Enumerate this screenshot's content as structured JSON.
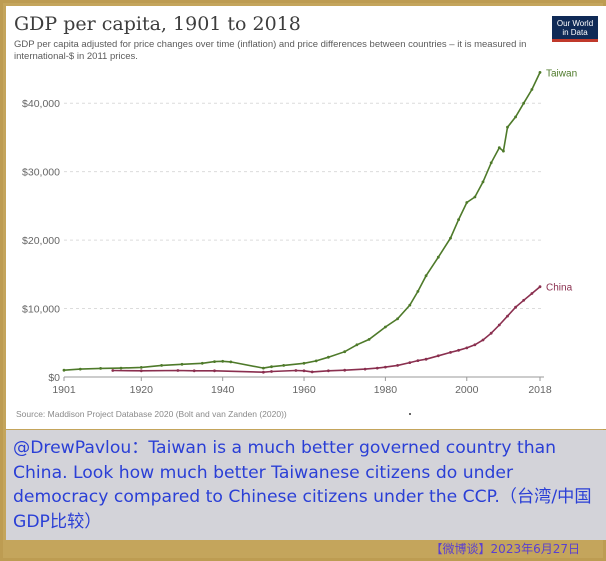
{
  "chart_data": {
    "type": "line",
    "title": "GDP per capita, 1901 to 2018",
    "subtitle": "GDP per capita adjusted for price changes over time (inflation) and price differences between countries – it is measured in international-$ in 2011 prices.",
    "source": "Source: Maddison Project Database 2020 (Bolt and van Zanden (2020))",
    "logo": [
      "Our World",
      "in Data"
    ],
    "xlim": [
      1901,
      2018
    ],
    "ylim": [
      0,
      45000
    ],
    "x_ticks": [
      1901,
      1920,
      1940,
      1960,
      1980,
      2000,
      2018
    ],
    "y_ticks": [
      {
        "value": 0,
        "label": "$0"
      },
      {
        "value": 10000,
        "label": "$10,000"
      },
      {
        "value": 20000,
        "label": "$20,000"
      },
      {
        "value": 30000,
        "label": "$30,000"
      },
      {
        "value": 40000,
        "label": "$40,000"
      }
    ],
    "grid": "horizontal dashed",
    "series": [
      {
        "name": "Taiwan",
        "color": "#4e7a2a",
        "points": [
          [
            1901,
            1000
          ],
          [
            1905,
            1150
          ],
          [
            1910,
            1250
          ],
          [
            1915,
            1300
          ],
          [
            1920,
            1400
          ],
          [
            1925,
            1700
          ],
          [
            1930,
            1850
          ],
          [
            1935,
            2000
          ],
          [
            1938,
            2250
          ],
          [
            1940,
            2300
          ],
          [
            1942,
            2200
          ],
          [
            1950,
            1300
          ],
          [
            1952,
            1500
          ],
          [
            1955,
            1700
          ],
          [
            1960,
            2000
          ],
          [
            1963,
            2350
          ],
          [
            1966,
            2900
          ],
          [
            1970,
            3700
          ],
          [
            1973,
            4700
          ],
          [
            1976,
            5500
          ],
          [
            1980,
            7300
          ],
          [
            1983,
            8500
          ],
          [
            1986,
            10500
          ],
          [
            1988,
            12500
          ],
          [
            1990,
            14800
          ],
          [
            1993,
            17500
          ],
          [
            1996,
            20300
          ],
          [
            1998,
            23000
          ],
          [
            2000,
            25500
          ],
          [
            2002,
            26300
          ],
          [
            2004,
            28500
          ],
          [
            2006,
            31300
          ],
          [
            2008,
            33500
          ],
          [
            2009,
            33000
          ],
          [
            2010,
            36500
          ],
          [
            2012,
            38000
          ],
          [
            2014,
            40000
          ],
          [
            2016,
            42000
          ],
          [
            2018,
            44500
          ]
        ]
      },
      {
        "name": "China",
        "color": "#8a2f4f",
        "points": [
          [
            1913,
            950
          ],
          [
            1920,
            900
          ],
          [
            1929,
            950
          ],
          [
            1933,
            900
          ],
          [
            1938,
            900
          ],
          [
            1950,
            700
          ],
          [
            1952,
            800
          ],
          [
            1958,
            950
          ],
          [
            1960,
            900
          ],
          [
            1962,
            750
          ],
          [
            1966,
            900
          ],
          [
            1970,
            1000
          ],
          [
            1975,
            1150
          ],
          [
            1978,
            1300
          ],
          [
            1980,
            1450
          ],
          [
            1983,
            1700
          ],
          [
            1986,
            2100
          ],
          [
            1988,
            2400
          ],
          [
            1990,
            2600
          ],
          [
            1993,
            3100
          ],
          [
            1996,
            3600
          ],
          [
            1998,
            3900
          ],
          [
            2000,
            4250
          ],
          [
            2002,
            4700
          ],
          [
            2004,
            5400
          ],
          [
            2006,
            6400
          ],
          [
            2008,
            7600
          ],
          [
            2010,
            8900
          ],
          [
            2012,
            10200
          ],
          [
            2014,
            11200
          ],
          [
            2016,
            12200
          ],
          [
            2018,
            13200
          ]
        ]
      }
    ]
  },
  "caption": "@DrewPavlou：Taiwan is a much better governed country than China. Look how much better Taiwanese citizens do under democracy compared to Chinese citizens under the CCP.（台湾/中国GDP比较）",
  "footer": "【微博谈】2023年6月27日"
}
